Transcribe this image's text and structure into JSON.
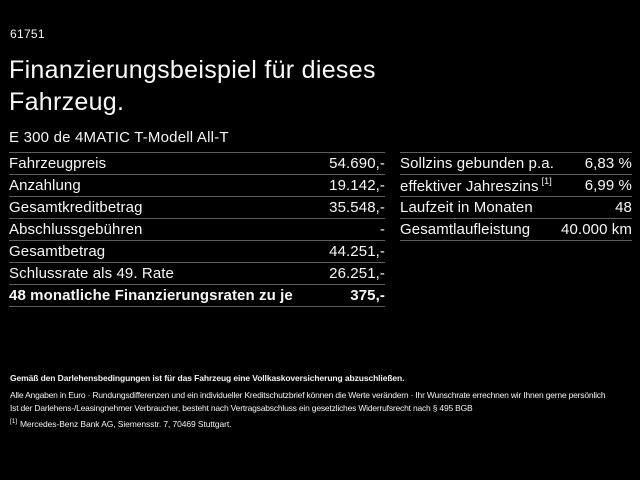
{
  "colors": {
    "background": "#000000",
    "text": "#f7f7f7",
    "divider": "#5e5e5e"
  },
  "header": {
    "listing_number": "61751",
    "title_line1": "Finanzierungsbeispiel für dieses",
    "title_line2": "Fahrzeug.",
    "vehicle_model": "E 300 de 4MATIC T-Modell All-T"
  },
  "financing_table": {
    "rows": [
      {
        "label": "Fahrzeugpreis",
        "value": "54.690,-"
      },
      {
        "label": "Anzahlung",
        "value": "19.142,-"
      },
      {
        "label": "Gesamtkreditbetrag",
        "value": "35.548,-"
      },
      {
        "label": "Abschlussgebühren",
        "value": "-"
      },
      {
        "label": "Gesamtbetrag",
        "value": "44.251,-"
      },
      {
        "label": "Schlussrate als 49. Rate",
        "value": "26.251,-"
      },
      {
        "label": "48 monatliche Finanzierungsraten zu je",
        "value": "375,-"
      }
    ]
  },
  "conditions_table": {
    "rows": [
      {
        "label": "Sollzins gebunden p.a.",
        "value": "6,83 %"
      },
      {
        "label": "effektiver Jahreszins",
        "sup": "[1]",
        "value": "6,99 %"
      },
      {
        "label": "Laufzeit in Monaten",
        "value": "48"
      },
      {
        "label": "Gesamtlaufleistung",
        "value": "40.000 km"
      }
    ]
  },
  "footer": {
    "insurance_note": "Gemäß den Darlehensbedingungen ist für das Fahrzeug eine Vollkaskoversicherung abzuschließen.",
    "disclaimer_line1": "Alle Angaben in Euro · Rundungsdifferenzen und ein individueller Kreditschutzbrief können die Werte verändern · Ihr Wunschrate errechnen wir Ihnen gerne persönlich",
    "disclaimer_line2": "Ist der Darlehens-/Leasingnehmer Verbraucher, besteht nach Vertragsabschluss ein gesetzliches Widerrufsrecht nach § 495 BGB",
    "footnote_marker": "[1]",
    "footnote_text": "Mercedes-Benz Bank AG, Siemensstr. 7, 70469 Stuttgart."
  }
}
